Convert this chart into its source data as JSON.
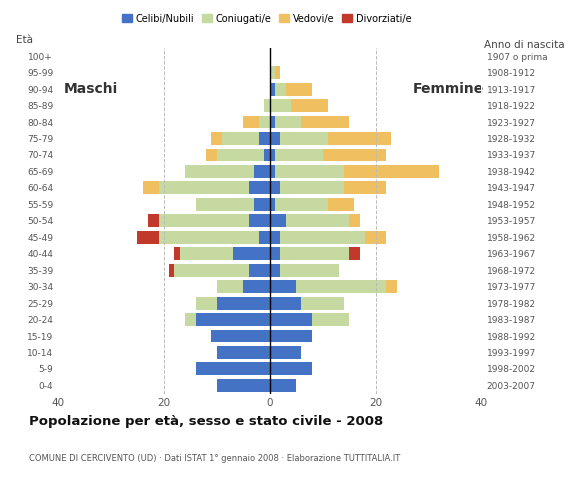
{
  "age_groups": [
    "0-4",
    "5-9",
    "10-14",
    "15-19",
    "20-24",
    "25-29",
    "30-34",
    "35-39",
    "40-44",
    "45-49",
    "50-54",
    "55-59",
    "60-64",
    "65-69",
    "70-74",
    "75-79",
    "80-84",
    "85-89",
    "90-94",
    "95-99",
    "100+"
  ],
  "birth_years": [
    "2003-2007",
    "1998-2002",
    "1993-1997",
    "1988-1992",
    "1983-1987",
    "1978-1982",
    "1973-1977",
    "1968-1972",
    "1963-1967",
    "1958-1962",
    "1953-1957",
    "1948-1952",
    "1943-1947",
    "1938-1942",
    "1933-1937",
    "1928-1932",
    "1923-1927",
    "1918-1922",
    "1913-1917",
    "1908-1912",
    "1907 o prima"
  ],
  "colors": {
    "celibi": "#4472c4",
    "coniugati": "#c5d9a0",
    "vedovi": "#f0c060",
    "divorziati": "#c0392b"
  },
  "males": {
    "celibi": [
      10,
      14,
      10,
      11,
      14,
      10,
      5,
      4,
      7,
      2,
      4,
      3,
      4,
      3,
      1,
      2,
      0,
      0,
      0,
      0,
      0
    ],
    "coniugati": [
      0,
      0,
      0,
      0,
      2,
      4,
      5,
      14,
      10,
      19,
      17,
      11,
      17,
      13,
      9,
      7,
      2,
      1,
      0,
      0,
      0
    ],
    "vedovi": [
      0,
      0,
      0,
      0,
      0,
      0,
      0,
      0,
      0,
      0,
      0,
      0,
      3,
      0,
      2,
      2,
      3,
      0,
      0,
      0,
      0
    ],
    "divorziati": [
      0,
      0,
      0,
      0,
      0,
      0,
      0,
      1,
      1,
      4,
      2,
      0,
      0,
      0,
      0,
      0,
      0,
      0,
      0,
      0,
      0
    ]
  },
  "females": {
    "celibi": [
      5,
      8,
      6,
      8,
      8,
      6,
      5,
      2,
      2,
      2,
      3,
      1,
      2,
      1,
      1,
      2,
      1,
      0,
      1,
      0,
      0
    ],
    "coniugati": [
      0,
      0,
      0,
      0,
      7,
      8,
      17,
      11,
      13,
      16,
      12,
      10,
      12,
      13,
      9,
      9,
      5,
      4,
      2,
      1,
      0
    ],
    "vedovi": [
      0,
      0,
      0,
      0,
      0,
      0,
      2,
      0,
      0,
      4,
      2,
      5,
      8,
      18,
      12,
      12,
      9,
      7,
      5,
      1,
      0
    ],
    "divorziati": [
      0,
      0,
      0,
      0,
      0,
      0,
      0,
      0,
      2,
      0,
      0,
      0,
      0,
      0,
      0,
      0,
      0,
      0,
      0,
      0,
      0
    ]
  },
  "title": "Popolazione per età, sesso e stato civile - 2008",
  "subtitle": "COMUNE DI CERCIVENTO (UD) · Dati ISTAT 1° gennaio 2008 · Elaborazione TUTTITALIA.IT",
  "label_maschi": "Maschi",
  "label_femmine": "Femmine",
  "label_eta": "Età",
  "label_anno": "Anno di nascita",
  "xlim": 40,
  "background_color": "#ffffff",
  "grid_color": "#bbbbbb"
}
